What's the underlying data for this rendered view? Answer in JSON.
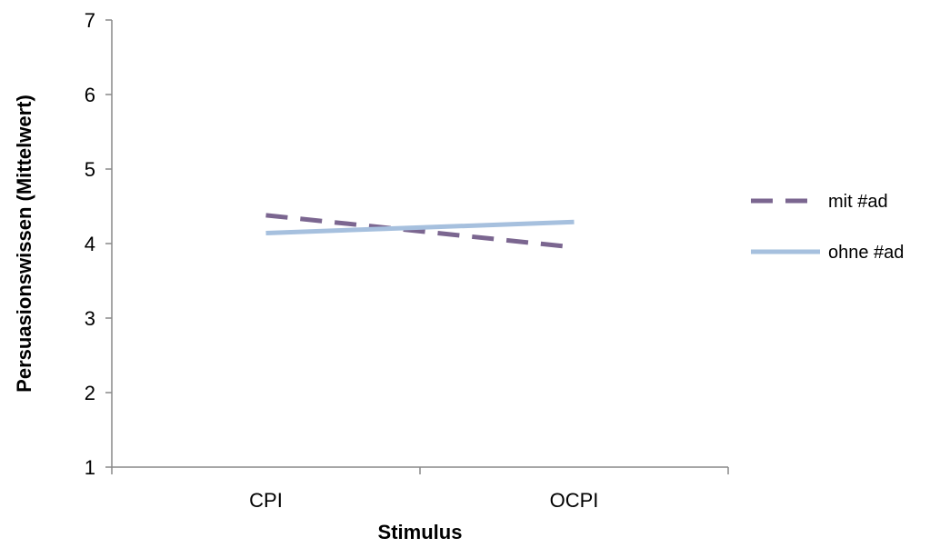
{
  "chart_data": {
    "type": "line",
    "categories": [
      "CPI",
      "OCPI"
    ],
    "xlabel": "Stimulus",
    "ylabel": "Persuasionswissen (Mittelwert)",
    "ylim": [
      1,
      7
    ],
    "yticks": [
      "1",
      "2",
      "3",
      "4",
      "5",
      "6",
      "7"
    ],
    "grid": false,
    "legend_position": "right",
    "series": [
      {
        "name": "mit #ad",
        "values": [
          4.38,
          3.95
        ],
        "color": "#7b6690",
        "dashed": true
      },
      {
        "name": "ohne #ad",
        "values": [
          4.14,
          4.29
        ],
        "color": "#a6c0de",
        "dashed": false
      }
    ]
  }
}
